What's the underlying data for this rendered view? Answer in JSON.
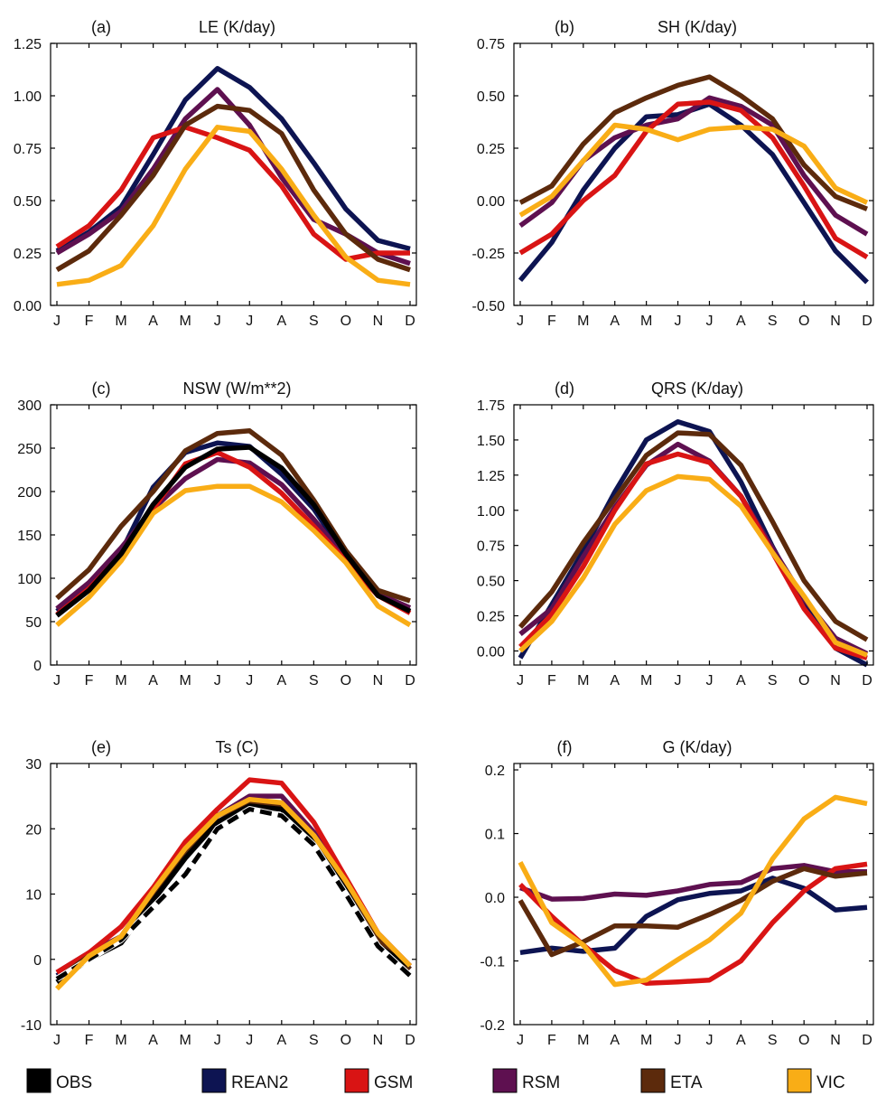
{
  "month_labels": [
    "J",
    "F",
    "M",
    "A",
    "M",
    "J",
    "J",
    "A",
    "S",
    "O",
    "N",
    "D"
  ],
  "colors": {
    "OBS": "#000000",
    "REAN2": "#0d1452",
    "GSM": "#d91414",
    "RSM": "#5e1050",
    "ETA": "#5c2a0c",
    "VIC": "#f9ad16"
  },
  "legend": [
    {
      "key": "OBS",
      "label": "OBS"
    },
    {
      "key": "REAN2",
      "label": "REAN2"
    },
    {
      "key": "GSM",
      "label": "GSM"
    },
    {
      "key": "RSM",
      "label": "RSM"
    },
    {
      "key": "ETA",
      "label": "ETA"
    },
    {
      "key": "VIC",
      "label": "VIC"
    }
  ],
  "chart_data": [
    {
      "id": "a",
      "panel_label": "(a)",
      "title": "LE (K/day)",
      "type": "line",
      "ylim": [
        0,
        1.25
      ],
      "yticks": [
        0,
        0.25,
        0.5,
        0.75,
        1.0,
        1.25
      ],
      "ytick_decimals": 2,
      "series": [
        {
          "name": "REAN2",
          "values": [
            0.26,
            0.35,
            0.47,
            0.72,
            0.98,
            1.13,
            1.04,
            0.89,
            0.68,
            0.46,
            0.31,
            0.27
          ]
        },
        {
          "name": "RSM",
          "values": [
            0.25,
            0.34,
            0.45,
            0.65,
            0.89,
            1.03,
            0.86,
            0.61,
            0.41,
            0.34,
            0.25,
            0.2
          ]
        },
        {
          "name": "GSM",
          "values": [
            0.28,
            0.38,
            0.55,
            0.8,
            0.85,
            0.8,
            0.74,
            0.57,
            0.34,
            0.22,
            0.25,
            0.25
          ]
        },
        {
          "name": "ETA",
          "values": [
            0.17,
            0.26,
            0.43,
            0.62,
            0.86,
            0.95,
            0.93,
            0.82,
            0.55,
            0.34,
            0.22,
            0.17
          ]
        },
        {
          "name": "VIC",
          "values": [
            0.1,
            0.12,
            0.19,
            0.38,
            0.65,
            0.85,
            0.83,
            0.65,
            0.43,
            0.23,
            0.12,
            0.1
          ]
        }
      ]
    },
    {
      "id": "b",
      "panel_label": "(b)",
      "title": "SH (K/day)",
      "type": "line",
      "ylim": [
        -0.5,
        0.75
      ],
      "yticks": [
        -0.5,
        -0.25,
        0,
        0.25,
        0.5,
        0.75
      ],
      "ytick_decimals": 2,
      "series": [
        {
          "name": "REAN2",
          "values": [
            -0.38,
            -0.2,
            0.05,
            0.25,
            0.4,
            0.41,
            0.46,
            0.36,
            0.22,
            -0.01,
            -0.24,
            -0.39
          ]
        },
        {
          "name": "RSM",
          "values": [
            -0.12,
            -0.01,
            0.19,
            0.3,
            0.36,
            0.39,
            0.49,
            0.45,
            0.36,
            0.12,
            -0.07,
            -0.16
          ]
        },
        {
          "name": "GSM",
          "values": [
            -0.25,
            -0.16,
            0.0,
            0.12,
            0.33,
            0.46,
            0.47,
            0.43,
            0.3,
            0.07,
            -0.18,
            -0.27
          ]
        },
        {
          "name": "ETA",
          "values": [
            -0.01,
            0.07,
            0.27,
            0.42,
            0.49,
            0.55,
            0.59,
            0.5,
            0.39,
            0.17,
            0.02,
            -0.04
          ]
        },
        {
          "name": "VIC",
          "values": [
            -0.07,
            0.02,
            0.19,
            0.36,
            0.34,
            0.29,
            0.34,
            0.35,
            0.34,
            0.26,
            0.06,
            -0.01
          ]
        }
      ]
    },
    {
      "id": "c",
      "panel_label": "(c)",
      "title": "NSW (W/m**2)",
      "type": "line",
      "ylim": [
        0,
        300
      ],
      "yticks": [
        0,
        50,
        100,
        150,
        200,
        250,
        300
      ],
      "ytick_decimals": 0,
      "series": [
        {
          "name": "REAN2",
          "values": [
            62,
            90,
            130,
            205,
            245,
            256,
            252,
            220,
            180,
            125,
            80,
            62
          ]
        },
        {
          "name": "RSM",
          "values": [
            65,
            95,
            135,
            180,
            215,
            237,
            233,
            208,
            168,
            123,
            82,
            66
          ]
        },
        {
          "name": "GSM",
          "values": [
            58,
            88,
            127,
            180,
            232,
            245,
            228,
            198,
            160,
            120,
            80,
            60
          ]
        },
        {
          "name": "ETA",
          "values": [
            77,
            110,
            160,
            200,
            247,
            267,
            270,
            242,
            190,
            132,
            86,
            74
          ]
        },
        {
          "name": "VIC",
          "values": [
            46,
            78,
            120,
            175,
            201,
            206,
            206,
            188,
            155,
            118,
            68,
            46
          ]
        },
        {
          "name": "OBS",
          "values": [
            57,
            86,
            128,
            185,
            228,
            249,
            251,
            227,
            185,
            128,
            80,
            62
          ]
        }
      ]
    },
    {
      "id": "d",
      "panel_label": "(d)",
      "title": "QRS (K/day)",
      "type": "line",
      "ylim": [
        -0.1,
        1.75
      ],
      "yticks": [
        0,
        0.25,
        0.5,
        0.75,
        1.0,
        1.25,
        1.5,
        1.75
      ],
      "ytick_decimals": 2,
      "series": [
        {
          "name": "REAN2",
          "values": [
            -0.05,
            0.33,
            0.71,
            1.13,
            1.5,
            1.63,
            1.56,
            1.2,
            0.74,
            0.33,
            0.02,
            -0.1
          ]
        },
        {
          "name": "RSM",
          "values": [
            0.12,
            0.3,
            0.67,
            1.02,
            1.32,
            1.47,
            1.35,
            1.1,
            0.73,
            0.37,
            0.09,
            -0.02
          ]
        },
        {
          "name": "GSM",
          "values": [
            0.03,
            0.26,
            0.6,
            1.0,
            1.33,
            1.4,
            1.34,
            1.1,
            0.7,
            0.3,
            0.02,
            -0.05
          ]
        },
        {
          "name": "ETA",
          "values": [
            0.17,
            0.42,
            0.77,
            1.08,
            1.39,
            1.55,
            1.54,
            1.32,
            0.92,
            0.5,
            0.21,
            0.08
          ]
        },
        {
          "name": "VIC",
          "values": [
            0.0,
            0.21,
            0.52,
            0.9,
            1.14,
            1.24,
            1.22,
            1.03,
            0.7,
            0.39,
            0.06,
            -0.03
          ]
        }
      ]
    },
    {
      "id": "e",
      "panel_label": "(e)",
      "title": "Ts (C)",
      "type": "line",
      "ylim": [
        -10,
        30
      ],
      "yticks": [
        -10,
        0,
        10,
        20,
        30
      ],
      "ytick_decimals": 0,
      "series": [
        {
          "name": "REAN2",
          "values": [
            -2.5,
            0.5,
            3.0,
            10.0,
            16.0,
            22.0,
            24.5,
            23.0,
            18.5,
            11.0,
            3.0,
            -1.5
          ]
        },
        {
          "name": "RSM",
          "values": [
            -2.0,
            1.0,
            3.5,
            10.5,
            17.0,
            22.0,
            25.0,
            25.0,
            19.5,
            12.0,
            4.0,
            -1.0
          ]
        },
        {
          "name": "GSM",
          "values": [
            -2.0,
            1.0,
            5.0,
            11.0,
            18.0,
            23.0,
            27.5,
            27.0,
            21.0,
            12.5,
            4.0,
            -1.0
          ]
        },
        {
          "name": "ETA",
          "values": [
            -3.0,
            0.5,
            3.0,
            10.0,
            16.0,
            21.0,
            24.0,
            23.5,
            18.5,
            11.5,
            3.0,
            -1.5
          ]
        },
        {
          "name": "OBS",
          "values": [
            -3.5,
            0.0,
            2.5,
            9.0,
            15.5,
            21.0,
            23.5,
            23.0,
            18.0,
            10.5,
            2.0,
            -1.0
          ]
        },
        {
          "name": "OBS (dashed)",
          "values": [
            -3.0,
            0.0,
            3.0,
            8.0,
            13.0,
            20.0,
            23.0,
            22.0,
            17.5,
            10.0,
            2.0,
            -2.5
          ],
          "dashed": true,
          "color_key": "OBS"
        },
        {
          "name": "VIC",
          "values": [
            -4.5,
            0.5,
            3.5,
            10.5,
            17.0,
            22.0,
            24.5,
            24.0,
            19.0,
            12.0,
            4.0,
            -1.0
          ]
        }
      ]
    },
    {
      "id": "f",
      "panel_label": "(f)",
      "title": "G (K/day)",
      "type": "line",
      "ylim": [
        -0.2,
        0.21
      ],
      "yticks": [
        -0.2,
        -0.1,
        0,
        0.1,
        0.2
      ],
      "ytick_decimals": 1,
      "series": [
        {
          "name": "REAN2",
          "values": [
            -0.087,
            -0.08,
            -0.085,
            -0.08,
            -0.03,
            -0.004,
            0.006,
            0.01,
            0.03,
            0.014,
            -0.02,
            -0.016
          ]
        },
        {
          "name": "RSM",
          "values": [
            0.015,
            -0.003,
            -0.002,
            0.005,
            0.003,
            0.01,
            0.02,
            0.023,
            0.045,
            0.05,
            0.04,
            0.04
          ]
        },
        {
          "name": "GSM",
          "values": [
            0.02,
            -0.03,
            -0.075,
            -0.115,
            -0.135,
            -0.133,
            -0.13,
            -0.1,
            -0.04,
            0.01,
            0.045,
            0.052
          ]
        },
        {
          "name": "ETA",
          "values": [
            -0.005,
            -0.09,
            -0.07,
            -0.045,
            -0.045,
            -0.047,
            -0.027,
            -0.005,
            0.025,
            0.045,
            0.033,
            0.038
          ]
        },
        {
          "name": "VIC",
          "values": [
            0.055,
            -0.04,
            -0.075,
            -0.137,
            -0.13,
            -0.098,
            -0.067,
            -0.025,
            0.06,
            0.123,
            0.157,
            0.147
          ]
        }
      ]
    }
  ]
}
